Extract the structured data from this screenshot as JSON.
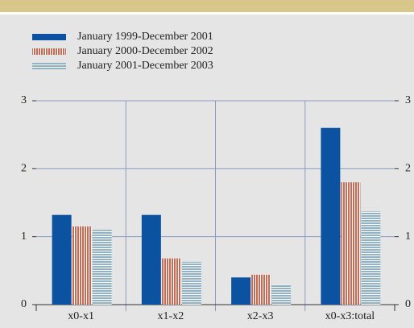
{
  "chart_data": {
    "type": "bar",
    "categories": [
      "x0-x1",
      "x1-x2",
      "x2-x3",
      "x0-x3:total"
    ],
    "series": [
      {
        "name": "January 1999-December 2001",
        "color": "#0b52a0",
        "pattern": "solid",
        "values": [
          1.32,
          1.32,
          0.4,
          2.6
        ]
      },
      {
        "name": "January 2000-December 2002",
        "color": "#c96a55",
        "pattern": "vertical-stripes",
        "values": [
          1.15,
          0.68,
          0.44,
          1.8
        ]
      },
      {
        "name": "January 2001-December 2003",
        "color": "#8fb2c4",
        "pattern": "horizontal-stripes",
        "values": [
          1.1,
          0.63,
          0.29,
          1.37
        ]
      }
    ],
    "ylim": [
      0,
      3
    ],
    "yticks": [
      0,
      1,
      2,
      3
    ],
    "y2lim": [
      0,
      3
    ],
    "y2ticks": [
      0,
      1,
      2,
      3
    ],
    "grid": true
  }
}
